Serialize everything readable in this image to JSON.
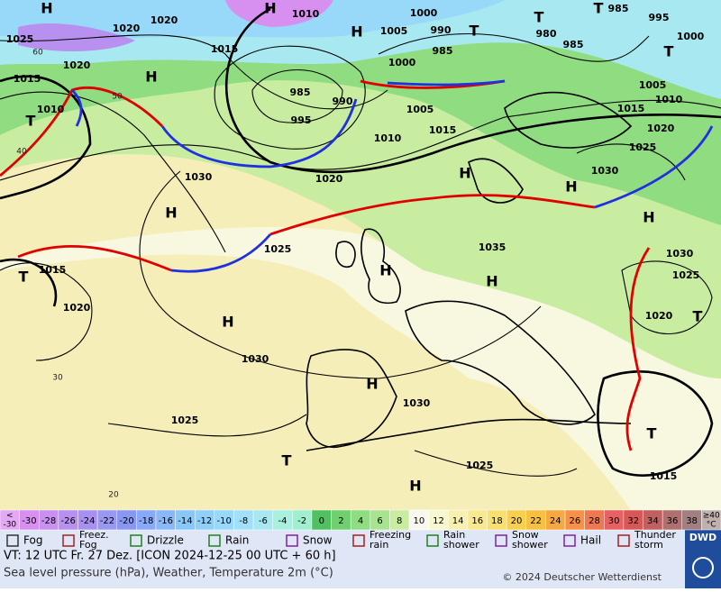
{
  "map": {
    "centers": [
      "H",
      "H",
      "H",
      "T",
      "T",
      "T",
      "T",
      "H",
      "T",
      "H",
      "H",
      "H",
      "H",
      "T",
      "H",
      "H",
      "H",
      "H",
      "T",
      "T",
      "H",
      "T"
    ],
    "isobar_labels": [
      1025,
      1020,
      1020,
      1010,
      1015,
      1020,
      1015,
      1010,
      1000,
      1005,
      990,
      985,
      980,
      985,
      985,
      995,
      1000,
      1000,
      985,
      990,
      995,
      1005,
      1015,
      1010,
      1020,
      1030,
      1005,
      1010,
      1015,
      1020,
      1025,
      1030,
      1035,
      1025,
      1015,
      1020,
      1030,
      1030,
      1025,
      1025,
      1015,
      1030,
      1025,
      1020
    ],
    "latitude_labels": [
      60,
      50,
      40,
      30,
      20
    ]
  },
  "legend": {
    "temperature_low": [
      "<",
      "-30"
    ],
    "temperature_values": [
      -30,
      -28,
      -26,
      -24,
      -22,
      -20,
      -18,
      -16,
      -14,
      -12,
      -10,
      -8,
      -6,
      -4,
      -2,
      0,
      2,
      4,
      6,
      8,
      10,
      12,
      14,
      16,
      18,
      20,
      22,
      24,
      26,
      28,
      30,
      32,
      34,
      36,
      38
    ],
    "temperature_high": [
      "≥40",
      "°C"
    ],
    "colors": [
      "#e4a8f4",
      "#d890f0",
      "#c890f0",
      "#b890f0",
      "#a890f0",
      "#9898f0",
      "#8898f0",
      "#88a8f8",
      "#88b8f8",
      "#88c8f8",
      "#90d0f8",
      "#98d8f8",
      "#a0e0f8",
      "#a8e8f0",
      "#a8f0e0",
      "#a0f0d0",
      "#50c060",
      "#70d070",
      "#90dc80",
      "#a8e490",
      "#c8eca0",
      "#f8f8f0",
      "#f8f8d0",
      "#f8f0b0",
      "#f8e890",
      "#f8e070",
      "#f8d050",
      "#f8c040",
      "#f8a840",
      "#f89048",
      "#f07850",
      "#e86060",
      "#d85858",
      "#c06060",
      "#b07070",
      "#a08080",
      "#c0b0b0"
    ],
    "weather": [
      [
        "Fog"
      ],
      [
        "Freez.",
        "Fog"
      ],
      [
        "Drizzle"
      ],
      [
        "Rain"
      ],
      [
        "Snow"
      ],
      [
        "Freezing",
        "rain"
      ],
      [
        "Rain",
        "shower"
      ],
      [
        "Snow",
        "shower"
      ],
      [
        "Hail"
      ],
      [
        "Thunder",
        "storm"
      ]
    ]
  },
  "footer": {
    "valid_time": "VT: 12 UTC Fr.  27 Dez. [ICON 2024-12-25  00 UTC + 60 h]",
    "description": "Sea level pressure (hPa), Weather, Temperature 2m (°C)",
    "copyright": "© 2024 Deutscher Wetterdienst",
    "logo": "DWD"
  }
}
